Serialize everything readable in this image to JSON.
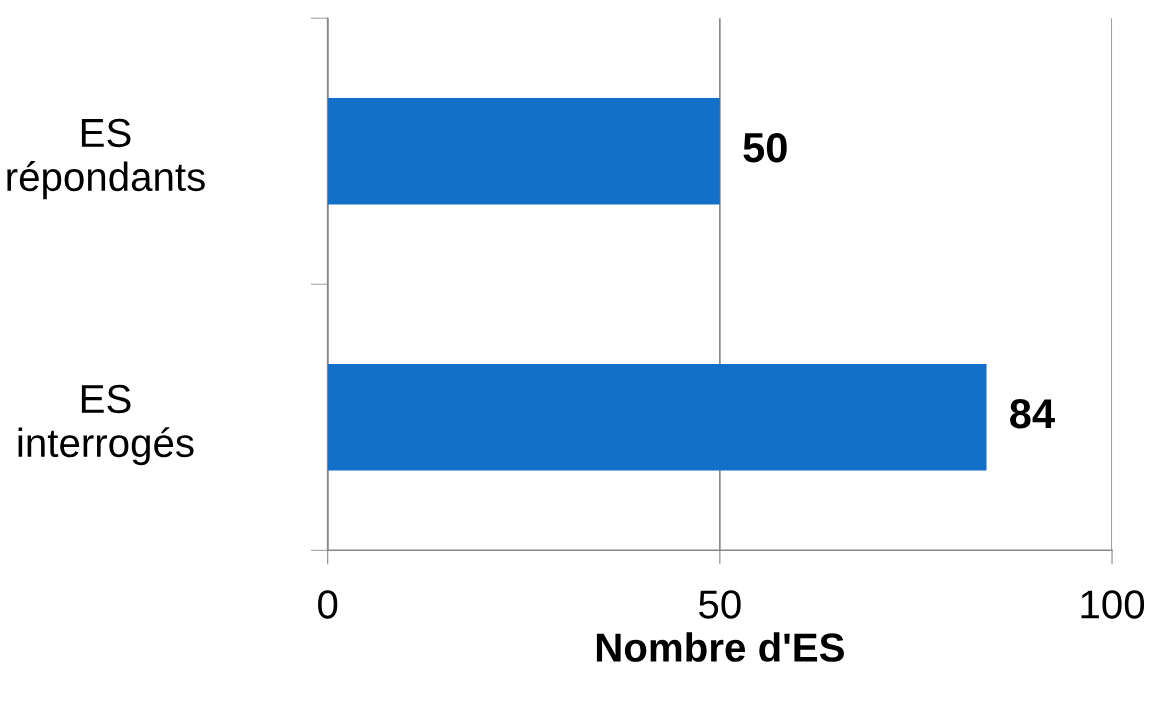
{
  "chart_data": {
    "type": "bar",
    "orientation": "horizontal",
    "xlabel": "Nombre d'ES",
    "categories": [
      "ES\nrépondants",
      "ES\ninterrogés"
    ],
    "values": [
      50,
      84
    ],
    "color": "#1270c8",
    "xlim": [
      0,
      100
    ],
    "xticks": [
      0,
      50,
      100
    ],
    "grid": "x",
    "data_labels": true,
    "legend": false
  }
}
